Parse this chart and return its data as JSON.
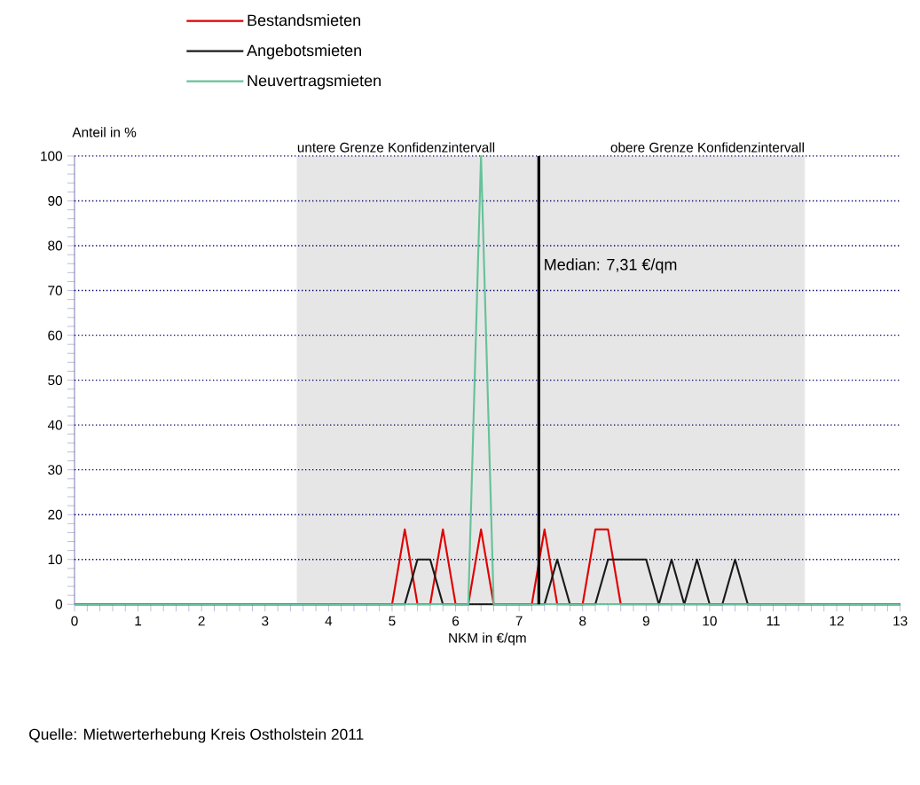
{
  "chart_data": {
    "type": "line",
    "xlabel": "NKM in €/qm",
    "ylabel": "Anteil in %",
    "xlim": [
      0,
      13
    ],
    "ylim": [
      0,
      100
    ],
    "xticks": [
      0,
      1,
      2,
      3,
      4,
      5,
      6,
      7,
      8,
      9,
      10,
      11,
      12,
      13
    ],
    "yticks": [
      0,
      10,
      20,
      30,
      40,
      50,
      60,
      70,
      80,
      90,
      100
    ],
    "grid": "y",
    "legend": "top left",
    "line_style": "solid",
    "series": [
      {
        "name": "Bestandsmieten",
        "color": "#e00000",
        "x": [
          0,
          5,
          5.2,
          5.4,
          5.6,
          5.8,
          6,
          6.2,
          6.4,
          6.6,
          7.2,
          7.4,
          7.6,
          8,
          8.2,
          8.4,
          8.6,
          13
        ],
        "values": [
          0,
          0,
          16.7,
          0,
          0,
          16.7,
          0,
          0,
          16.7,
          0,
          0,
          16.7,
          0,
          0,
          16.7,
          16.7,
          0,
          0
        ]
      },
      {
        "name": "Angebotsmieten",
        "color": "#1a1a1a",
        "x": [
          0,
          5.2,
          5.4,
          5.6,
          5.8,
          7.4,
          7.6,
          7.8,
          8.2,
          8.4,
          9,
          9.2,
          9.4,
          9.6,
          9.8,
          10,
          10.2,
          10.4,
          10.6,
          13
        ],
        "values": [
          0,
          0,
          10,
          10,
          0,
          0,
          10,
          0,
          0,
          10,
          10,
          0,
          10,
          0,
          10,
          0,
          0,
          10,
          0,
          0
        ]
      },
      {
        "name": "Neuvertragsmieten",
        "color": "#66c299",
        "x": [
          0,
          6.2,
          6.4,
          6.6,
          13
        ],
        "values": [
          0,
          0,
          100,
          0,
          0
        ]
      }
    ],
    "ref_lines": [
      {
        "axis": "x",
        "value": 7.31,
        "label": "Median: 7,31 €/qm",
        "color": "#000000"
      }
    ],
    "bands": [
      {
        "axis": "x",
        "from": 3.5,
        "to": 11.5,
        "color": "#e6e6e6"
      }
    ],
    "annotations": [
      {
        "text": "untere Grenze Konfidenzintervall",
        "x": 3.5,
        "y": 100
      },
      {
        "text": "obere Grenze Konfidenzintervall",
        "x": 11.5,
        "y": 100
      },
      "Quelle: Mietwerterhebung Kreis Ostholstein 2011"
    ]
  }
}
